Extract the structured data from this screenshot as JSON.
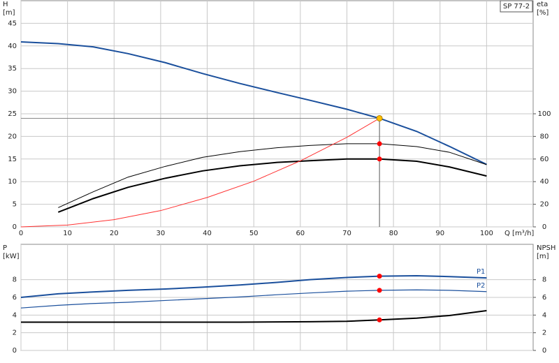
{
  "chart_data": [
    {
      "type": "line",
      "title": "SP 77-2",
      "ylabel": [
        "H",
        "[m]"
      ],
      "y2label": [
        "eta",
        "[%]"
      ],
      "xlabel": "Q [m³/h]",
      "xlim": [
        0,
        110
      ],
      "xticks": [
        0,
        10,
        20,
        30,
        40,
        50,
        60,
        70,
        80,
        90,
        100
      ],
      "ylim": [
        0,
        50
      ],
      "yticks": [
        0,
        5,
        10,
        15,
        20,
        25,
        30,
        35,
        40,
        45
      ],
      "y2lim": [
        0,
        200
      ],
      "y2ticks": [
        0,
        20,
        40,
        60,
        80,
        100
      ],
      "grid": true,
      "operating_point": {
        "x": 77,
        "y": 24,
        "color": "#ffc000"
      },
      "series": [
        {
          "color": "#1a4f9c",
          "width": 2,
          "x": [
            0,
            8,
            15.5,
            23,
            31,
            39,
            47,
            55,
            62,
            70,
            77,
            85,
            92,
            100
          ],
          "values": [
            40.9,
            40.5,
            39.8,
            38.3,
            36.3,
            33.9,
            31.7,
            29.7,
            28.0,
            26.0,
            24.0,
            21.1,
            17.8,
            13.8
          ]
        },
        {
          "color": "#000000",
          "width": 1,
          "axis": "y2",
          "point_color": "#ff0000",
          "x": [
            8,
            15.5,
            23,
            31,
            39,
            47,
            55,
            62,
            70,
            77,
            85,
            92,
            100
          ],
          "values": [
            17,
            31,
            44,
            53.5,
            61.5,
            66.5,
            70,
            72,
            73.5,
            73.5,
            71,
            66,
            55
          ]
        },
        {
          "color": "#000000",
          "width": 2,
          "axis": "y2",
          "point_color": "#ff0000",
          "x": [
            8,
            15.5,
            23,
            31,
            39,
            47,
            55,
            62,
            70,
            77,
            85,
            92,
            100
          ],
          "values": [
            13,
            25,
            35,
            43,
            49.5,
            54,
            57,
            58.5,
            60,
            60,
            58,
            53,
            45
          ]
        },
        {
          "color": "#ff3030",
          "width": 1,
          "x": [
            0,
            10,
            20,
            30,
            40,
            50,
            60,
            70,
            77
          ],
          "values": [
            0,
            0.4,
            1.6,
            3.6,
            6.5,
            10.1,
            14.6,
            19.8,
            24
          ]
        }
      ]
    },
    {
      "type": "line",
      "ylabel": [
        "P",
        "[kW]"
      ],
      "y2label": [
        "NPSH",
        "[m]"
      ],
      "xlim": [
        0,
        110
      ],
      "xticks": [
        0,
        10,
        20,
        30,
        40,
        50,
        60,
        70,
        80,
        90,
        100
      ],
      "ylim": [
        0,
        12
      ],
      "yticks": [
        0,
        2,
        4,
        6,
        8
      ],
      "y2lim": [
        0,
        12
      ],
      "y2ticks": [
        0,
        2,
        4,
        6,
        8
      ],
      "grid": true,
      "operating_x": 77,
      "series": [
        {
          "name": "P1",
          "color": "#1a4f9c",
          "width": 2,
          "point_color": "#ff0000",
          "x": [
            0,
            8,
            15,
            23,
            31,
            39,
            47,
            55,
            62,
            70,
            77,
            85,
            92,
            100
          ],
          "values": [
            6.0,
            6.4,
            6.6,
            6.8,
            6.95,
            7.15,
            7.4,
            7.7,
            8.0,
            8.25,
            8.4,
            8.45,
            8.35,
            8.2
          ]
        },
        {
          "name": "P2",
          "color": "#1a4f9c",
          "width": 1.2,
          "point_color": "#ff0000",
          "x": [
            0,
            8,
            15,
            23,
            31,
            39,
            47,
            55,
            62,
            70,
            77,
            85,
            92,
            100
          ],
          "values": [
            4.8,
            5.1,
            5.3,
            5.45,
            5.65,
            5.85,
            6.05,
            6.3,
            6.5,
            6.7,
            6.8,
            6.85,
            6.8,
            6.65
          ]
        },
        {
          "color": "#000000",
          "width": 2,
          "axis": "y2",
          "point_color": "#ff0000",
          "x": [
            0,
            8,
            15,
            31,
            47,
            62,
            70,
            77,
            85,
            92,
            100
          ],
          "values": [
            3.2,
            3.2,
            3.2,
            3.2,
            3.2,
            3.25,
            3.3,
            3.45,
            3.65,
            3.95,
            4.5
          ]
        }
      ]
    }
  ]
}
